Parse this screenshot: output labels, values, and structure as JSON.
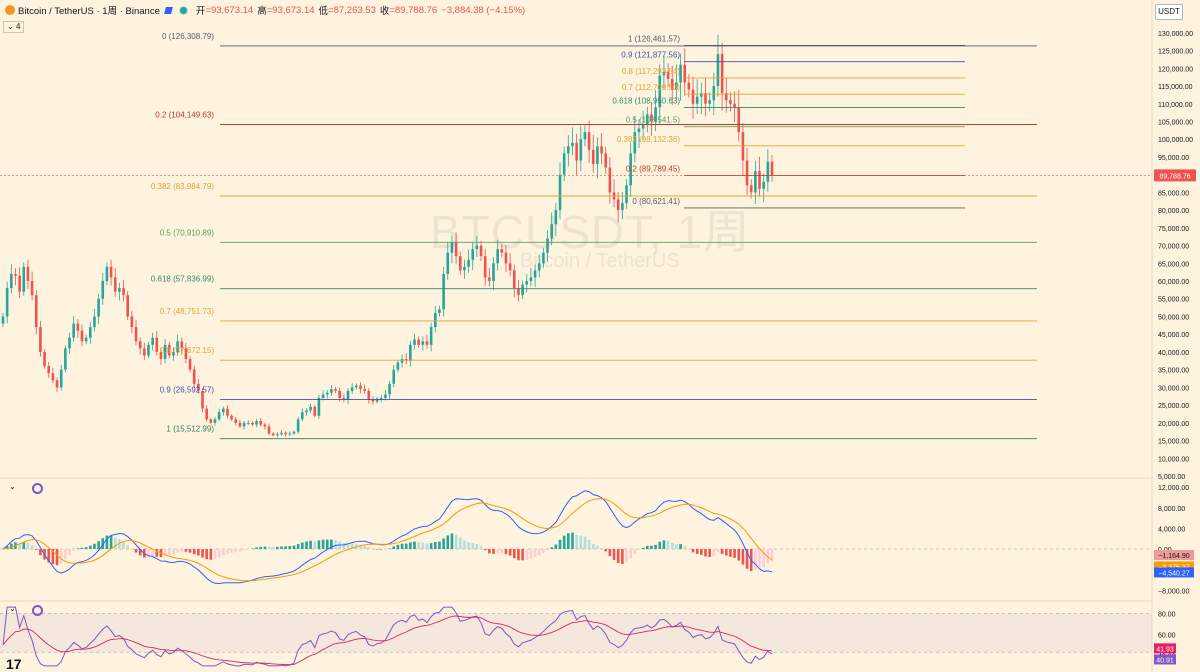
{
  "header": {
    "symbol": "Bitcoin / TetherUS · 1周 · Binance",
    "open_label": "开",
    "open": "=93,673.14",
    "high_label": "高",
    "high": "=93,673.14",
    "low_label": "低",
    "low": "=87,263.53",
    "close_label": "收",
    "close": "=89,788.76",
    "change": "−3,884.38 (−4.15%)",
    "sub_count": "4"
  },
  "currency_button": "USDT",
  "watermark": {
    "line1": "BTCUSDT, 1周",
    "line2": "Bitcoin / TetherUS"
  },
  "colors": {
    "background": "#fdf3de",
    "up": "#26a69a",
    "down": "#ef5350",
    "price_line": "#ef5350"
  },
  "chart_data": [
    {
      "type": "candlestick",
      "price_axis": {
        "ticks": [
          "130,000.00",
          "125,000.00",
          "120,000.00",
          "115,000.00",
          "110,000.00",
          "105,000.00",
          "100,000.00",
          "95,000.00",
          "90,000.00",
          "85,000.00",
          "80,000.00",
          "75,000.00",
          "70,000.00",
          "65,000.00",
          "60,000.00",
          "55,000.00",
          "50,000.00",
          "45,000.00",
          "40,000.00",
          "35,000.00",
          "30,000.00",
          "25,000.00",
          "20,000.00",
          "15,000.00",
          "10,000.00",
          "5,000.00"
        ],
        "ylim": [
          5000,
          132500
        ],
        "last_price_label": "89,788.76",
        "last_price": 89788.76
      },
      "fib_left": [
        {
          "label": "0 (126,308.79)",
          "level": 126308.79,
          "color": "#555d6e"
        },
        {
          "label": "0.2 (104,149.63)",
          "level": 104149.63,
          "color": "#c0392b"
        },
        {
          "label": "0.382 (83,984.79)",
          "level": 83984.79,
          "color": "#e5a331"
        },
        {
          "label": "0.5 (70,910.89)",
          "level": 70910.89,
          "color": "#5aa35b"
        },
        {
          "label": "0.618 (57,836.99)",
          "level": 57836.99,
          "color": "#2e8b6e"
        },
        {
          "label": "0.7 (48,751.73)",
          "level": 48751.73,
          "color": "#e5a331"
        },
        {
          "label": "0.8 (37,672.15)",
          "level": 37672.15,
          "color": "#e5a331"
        },
        {
          "label": "0.9 (26,592.57)",
          "level": 26592.57,
          "color": "#3f51b5"
        },
        {
          "label": "1 (15,512.99)",
          "level": 15512.99,
          "color": "#2e7d5b"
        }
      ],
      "fib_right": [
        {
          "label": "1 (126,461.57)",
          "level": 126461.57,
          "color": "#555d6e"
        },
        {
          "label": "0.9 (121,877.56)",
          "level": 121877.56,
          "color": "#3f51b5"
        },
        {
          "label": "0.8 (117,293.54)",
          "level": 117293.54,
          "color": "#e5a331"
        },
        {
          "label": "0.7 (112,709.53)",
          "level": 112709.53,
          "color": "#e5a331"
        },
        {
          "label": "0.618 (108,950.63)",
          "level": 108950.63,
          "color": "#2e8b6e"
        },
        {
          "label": "0.5 (103,541.5)",
          "level": 103541.5,
          "color": "#5aa35b"
        },
        {
          "label": "0.382 (98,132.36)",
          "level": 98132.36,
          "color": "#e5a331"
        },
        {
          "label": "0.2 (89,789.45)",
          "level": 89789.45,
          "color": "#c0392b"
        },
        {
          "label": "0 (80,621.41)",
          "level": 80621.41,
          "color": "#555d6e"
        }
      ],
      "closes": [
        50000,
        58000,
        62000,
        61500,
        57000,
        64000,
        60000,
        56000,
        47000,
        40000,
        36000,
        34000,
        32000,
        30000,
        35000,
        41000,
        44000,
        48000,
        46000,
        43000,
        44000,
        47000,
        50000,
        55000,
        60000,
        64000,
        61000,
        57000,
        58000,
        56000,
        50000,
        47000,
        43000,
        41000,
        39000,
        42000,
        44000,
        40000,
        38000,
        42000,
        39000,
        40000,
        43000,
        41000,
        38000,
        35000,
        31000,
        29000,
        24000,
        21000,
        20000,
        21000,
        23000,
        24000,
        22000,
        21000,
        20000,
        19000,
        20000,
        20000,
        19500,
        20500,
        19500,
        19000,
        17000,
        16500,
        16800,
        17200,
        16800,
        17000,
        17500,
        21000,
        23000,
        23500,
        24500,
        22000,
        27000,
        28000,
        28500,
        29500,
        29000,
        27000,
        26500,
        29000,
        30000,
        30500,
        29500,
        29000,
        26500,
        26000,
        26800,
        27000,
        28000,
        31000,
        35000,
        37000,
        38000,
        37500,
        42000,
        43500,
        42000,
        43000,
        42000,
        47000,
        51000,
        52000,
        62000,
        68000,
        71000,
        67000,
        63000,
        64000,
        66000,
        69000,
        70000,
        67000,
        61000,
        60000,
        65000,
        69000,
        68000,
        65000,
        63000,
        58000,
        56000,
        59000,
        60000,
        61000,
        63000,
        65000,
        68000,
        72000,
        76000,
        80000,
        90000,
        96000,
        98000,
        99000,
        94000,
        100000,
        102000,
        97000,
        93000,
        98000,
        96000,
        92000,
        85000,
        83000,
        80000,
        82000,
        87000,
        96000,
        102000,
        103000,
        104000,
        107000,
        105000,
        109000,
        118000,
        119000,
        117000,
        114000,
        116000,
        121000,
        116000,
        114000,
        110000,
        112000,
        113000,
        110000,
        111000,
        115000,
        124000,
        113000,
        111000,
        110000,
        109000,
        102000,
        94000,
        87000,
        85000,
        91000,
        86000,
        88000,
        93673,
        89788
      ]
    },
    {
      "type": "histogram-oscillator",
      "axis_ticks": [
        "12,000.00",
        "8,000.00",
        "4,000.00",
        "0.00",
        "−4,000.00",
        "−8,000.00"
      ],
      "labels": [
        "−1,164.90",
        "−3,375.37",
        "−4,540.27"
      ],
      "label_values": [
        -1164.9,
        -3375.37,
        -4540.27
      ],
      "label_colors": [
        "#ef9a9a",
        "#ff9800",
        "#2962ff"
      ],
      "ylim": [
        -9500,
        13000
      ]
    },
    {
      "type": "line-oscillator",
      "axis_ticks": [
        "80.00",
        "60.00",
        "40.00"
      ],
      "labels": [
        "41.93",
        "40.91"
      ],
      "label_values": [
        41.93,
        40.91
      ],
      "label_colors": [
        "#e91e63",
        "#7e57c2"
      ],
      "ylim": [
        28,
        88
      ]
    }
  ]
}
